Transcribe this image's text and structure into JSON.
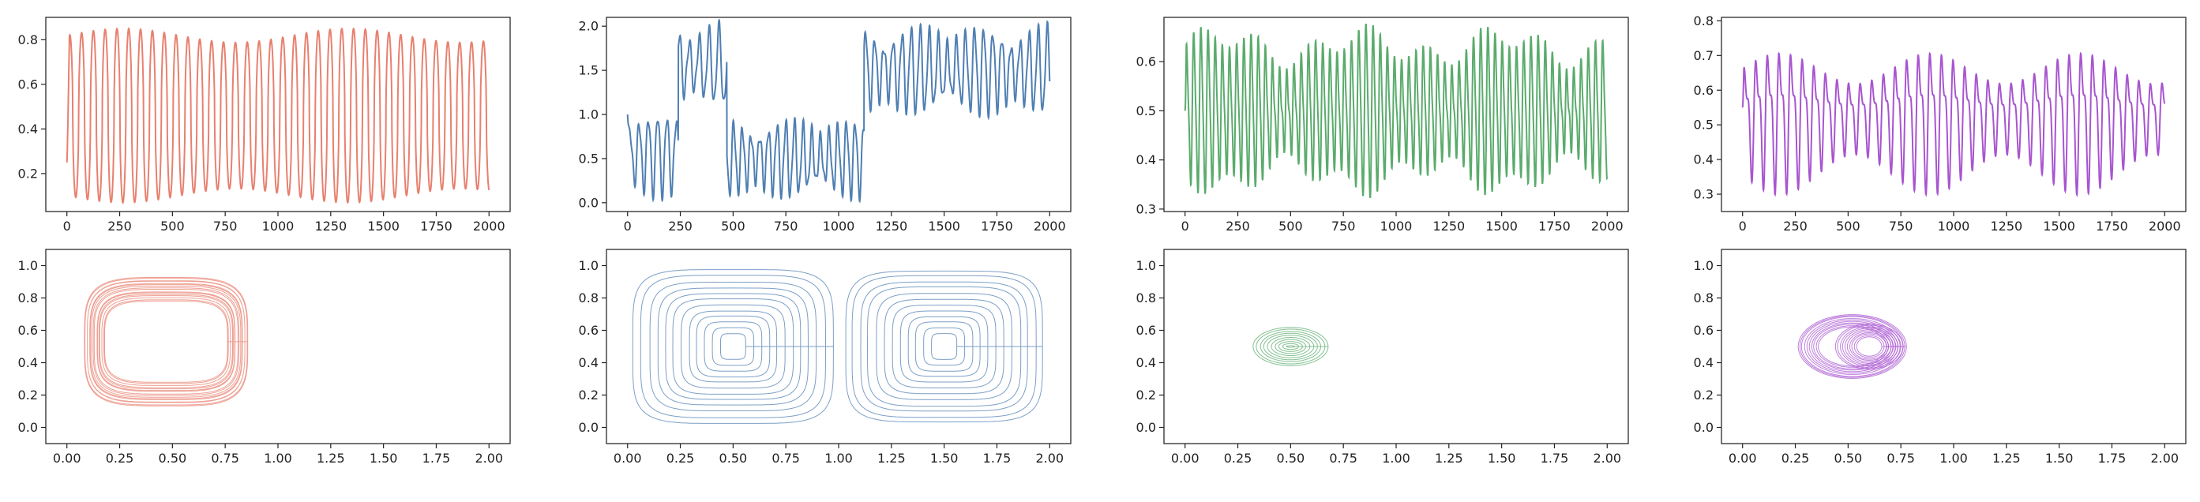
{
  "figure": {
    "layout": "2 rows x 4 columns",
    "background": "#ffffff"
  },
  "chart_data": [
    {
      "type": "line",
      "color": "#e8806f",
      "x_range": [
        0,
        2000
      ],
      "ylim": [
        0.03,
        0.9
      ],
      "xticks": [
        "0",
        "250",
        "500",
        "750",
        "1000",
        "1250",
        "1500",
        "1750",
        "2000"
      ],
      "yticks": [
        "0.2",
        "0.4",
        "0.6",
        "0.8"
      ],
      "xtick_values": [
        0,
        250,
        500,
        750,
        1000,
        1250,
        1500,
        1750,
        2000
      ],
      "ytick_values": [
        0.2,
        0.4,
        0.6,
        0.8
      ],
      "signal": {
        "kind": "relaxation",
        "period": 56,
        "min": 0.07,
        "max": 0.85,
        "start": 0.25
      }
    },
    {
      "type": "line",
      "color": "#4f7fb3",
      "x_range": [
        0,
        2000
      ],
      "ylim": [
        -0.1,
        2.1
      ],
      "xticks": [
        "0",
        "250",
        "500",
        "750",
        "1000",
        "1250",
        "1500",
        "1750",
        "2000"
      ],
      "yticks": [
        "0.0",
        "0.5",
        "1.0",
        "1.5",
        "2.0"
      ],
      "xtick_values": [
        0,
        250,
        500,
        750,
        1000,
        1250,
        1500,
        1750,
        2000
      ],
      "ytick_values": [
        0,
        0.5,
        1.0,
        1.5,
        2.0
      ],
      "signal": {
        "kind": "switching",
        "segments": [
          {
            "from": 0,
            "to": 240,
            "center": 0.55,
            "amp": 0.45,
            "period": 45
          },
          {
            "from": 240,
            "to": 470,
            "center": 1.55,
            "amp": 0.45,
            "period": 48
          },
          {
            "from": 470,
            "to": 1120,
            "center": 0.5,
            "amp": 0.42,
            "period": 42
          },
          {
            "from": 1120,
            "to": 2000,
            "center": 1.5,
            "amp": 0.48,
            "period": 44
          }
        ]
      }
    },
    {
      "type": "line",
      "color": "#5aab6c",
      "x_range": [
        0,
        2000
      ],
      "ylim": [
        0.295,
        0.69
      ],
      "xticks": [
        "0",
        "250",
        "500",
        "750",
        "1000",
        "1250",
        "1500",
        "1750",
        "2000"
      ],
      "yticks": [
        "0.3",
        "0.4",
        "0.5",
        "0.6"
      ],
      "xtick_values": [
        0,
        250,
        500,
        750,
        1000,
        1250,
        1500,
        1750,
        2000
      ],
      "ytick_values": [
        0.3,
        0.4,
        0.5,
        0.6
      ],
      "signal": {
        "kind": "oscillation",
        "period": 34,
        "center": 0.5,
        "amp": 0.17,
        "start": 0.5
      }
    },
    {
      "type": "line",
      "color": "#a855d0",
      "x_range": [
        0,
        2000
      ],
      "ylim": [
        0.25,
        0.81
      ],
      "xticks": [
        "0",
        "250",
        "500",
        "750",
        "1000",
        "1250",
        "1500",
        "1750",
        "2000"
      ],
      "yticks": [
        "0.3",
        "0.4",
        "0.5",
        "0.6",
        "0.7",
        "0.8"
      ],
      "xtick_values": [
        0,
        250,
        500,
        750,
        1000,
        1250,
        1500,
        1750,
        2000
      ],
      "ytick_values": [
        0.3,
        0.4,
        0.5,
        0.6,
        0.7,
        0.8
      ],
      "signal": {
        "kind": "two-tone",
        "period": 55,
        "center": 0.53,
        "amp": 0.22,
        "start": 0.55
      }
    },
    {
      "type": "phase",
      "color": "#e8806f",
      "xlim": [
        -0.1,
        2.1
      ],
      "ylim": [
        -0.1,
        1.1
      ],
      "xticks": [
        "0.00",
        "0.25",
        "0.50",
        "0.75",
        "1.00",
        "1.25",
        "1.50",
        "1.75",
        "2.00"
      ],
      "yticks": [
        "0.0",
        "0.2",
        "0.4",
        "0.6",
        "0.8",
        "1.0"
      ],
      "xtick_values": [
        0,
        0.25,
        0.5,
        0.75,
        1.0,
        1.25,
        1.5,
        1.75,
        2.0
      ],
      "ytick_values": [
        0,
        0.2,
        0.4,
        0.6,
        0.8,
        1.0
      ],
      "orbits": [
        {
          "center": [
            0.47,
            0.53
          ],
          "rx": [
            0.29,
            0.39
          ],
          "ry": [
            0.25,
            0.4
          ],
          "shape": 4
        }
      ]
    },
    {
      "type": "phase",
      "color": "#4f7fb3",
      "xlim": [
        -0.1,
        2.1
      ],
      "ylim": [
        -0.1,
        1.1
      ],
      "xticks": [
        "0.00",
        "0.25",
        "0.50",
        "0.75",
        "1.00",
        "1.25",
        "1.50",
        "1.75",
        "2.00"
      ],
      "yticks": [
        "0.0",
        "0.2",
        "0.4",
        "0.6",
        "0.8",
        "1.0"
      ],
      "xtick_values": [
        0,
        0.25,
        0.5,
        0.75,
        1.0,
        1.25,
        1.5,
        1.75,
        2.0
      ],
      "ytick_values": [
        0,
        0.2,
        0.4,
        0.6,
        0.8,
        1.0
      ],
      "orbits": [
        {
          "center": [
            0.5,
            0.5
          ],
          "rx": [
            0.06,
            0.47
          ],
          "ry": [
            0.08,
            0.47
          ],
          "shape": 5
        },
        {
          "center": [
            1.5,
            0.5
          ],
          "rx": [
            0.06,
            0.47
          ],
          "ry": [
            0.08,
            0.47
          ],
          "shape": 5
        }
      ]
    },
    {
      "type": "phase",
      "color": "#5aab6c",
      "xlim": [
        -0.1,
        2.1
      ],
      "ylim": [
        -0.1,
        1.1
      ],
      "xticks": [
        "0.00",
        "0.25",
        "0.50",
        "0.75",
        "1.00",
        "1.25",
        "1.50",
        "1.75",
        "2.00"
      ],
      "yticks": [
        "0.0",
        "0.2",
        "0.4",
        "0.6",
        "0.8",
        "1.0"
      ],
      "xtick_values": [
        0,
        0.25,
        0.5,
        0.75,
        1.0,
        1.25,
        1.5,
        1.75,
        2.0
      ],
      "ytick_values": [
        0,
        0.2,
        0.4,
        0.6,
        0.8,
        1.0
      ],
      "orbits": [
        {
          "center": [
            0.5,
            0.5
          ],
          "rx": [
            0.02,
            0.18
          ],
          "ry": [
            0.005,
            0.12
          ],
          "shape": 2
        }
      ]
    },
    {
      "type": "phase",
      "color": "#a855d0",
      "xlim": [
        -0.1,
        2.1
      ],
      "ylim": [
        -0.1,
        1.1
      ],
      "xticks": [
        "0.00",
        "0.25",
        "0.50",
        "0.75",
        "1.00",
        "1.25",
        "1.50",
        "1.75",
        "2.00"
      ],
      "yticks": [
        "0.0",
        "0.2",
        "0.4",
        "0.6",
        "0.8",
        "1.0"
      ],
      "xtick_values": [
        0,
        0.25,
        0.5,
        0.75,
        1.0,
        1.25,
        1.5,
        1.75,
        2.0
      ],
      "ytick_values": [
        0,
        0.2,
        0.4,
        0.6,
        0.8,
        1.0
      ],
      "orbits": [
        {
          "center": [
            0.52,
            0.5
          ],
          "rx": [
            0.16,
            0.26
          ],
          "ry": [
            0.12,
            0.2
          ],
          "shape": 2
        },
        {
          "center": [
            0.6,
            0.5
          ],
          "rx": [
            0.06,
            0.16
          ],
          "ry": [
            0.06,
            0.14
          ],
          "shape": 2
        }
      ]
    }
  ]
}
